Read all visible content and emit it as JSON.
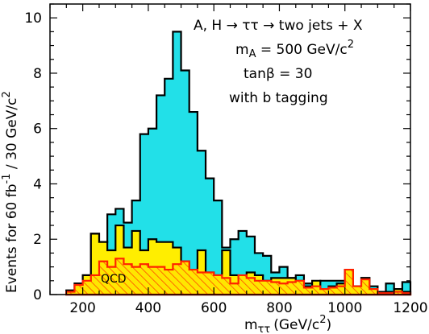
{
  "chart_data": {
    "type": "area",
    "title": "",
    "xlabel": "m",
    "xlabel_sub": "ττ",
    "xlabel_unit": "(GeV/c",
    "xlabel_unit_sup": "2",
    "xlabel_unit_close": ")",
    "ylabel": "Events for 60 fb",
    "ylabel_sup1": "-1",
    "ylabel_mid": " / 30 GeV/c",
    "ylabel_sup2": "2",
    "xlim": [
      100,
      1200
    ],
    "ylim": [
      0,
      10.5
    ],
    "xticks": [
      200,
      400,
      600,
      800,
      1000,
      1200
    ],
    "yticks": [
      0,
      2,
      4,
      6,
      8,
      10
    ],
    "grid": false,
    "bin_edges": [
      150,
      175,
      200,
      225,
      250,
      275,
      300,
      325,
      350,
      375,
      400,
      425,
      450,
      475,
      500,
      525,
      550,
      575,
      600,
      625,
      650,
      675,
      700,
      725,
      750,
      775,
      800,
      825,
      850,
      875,
      900,
      925,
      950,
      975,
      1000,
      1025,
      1050,
      1075,
      1100,
      1125,
      1150,
      1175,
      1200
    ],
    "series": [
      {
        "name": "",
        "role": "total",
        "fill": "#22e0e8",
        "stroke": "#000000",
        "values": [
          0.15,
          0.4,
          0.7,
          2.2,
          1.9,
          2.9,
          3.1,
          2.6,
          3.4,
          5.8,
          6.0,
          7.2,
          7.8,
          9.5,
          8.1,
          6.6,
          5.2,
          4.2,
          3.4,
          1.7,
          2.0,
          2.3,
          2.1,
          1.5,
          1.4,
          0.8,
          1.0,
          0.6,
          0.7,
          0.4,
          0.45,
          0.5,
          0.5,
          0.5,
          0.9,
          0.3,
          0.6,
          0.3,
          0.1,
          0.4,
          0.2,
          0.45
        ]
      },
      {
        "name": "",
        "role": "background",
        "fill": "#ffee00",
        "stroke": "#000000",
        "values": [
          0.15,
          0.4,
          0.7,
          2.2,
          1.9,
          1.6,
          2.5,
          1.7,
          2.3,
          1.6,
          2.0,
          1.9,
          1.9,
          1.7,
          1.2,
          0.9,
          1.6,
          0.8,
          0.7,
          1.6,
          0.7,
          0.6,
          0.8,
          0.7,
          0.5,
          0.6,
          0.6,
          0.6,
          0.5,
          0.3,
          0.5,
          0.2,
          0.3,
          0.4,
          0.9,
          0.3,
          0.6,
          0.2,
          0.1,
          0.1,
          0.2,
          0.1
        ]
      },
      {
        "name": "QCD",
        "role": "qcd",
        "fill": "#ff9922",
        "stroke": "#ff2200",
        "values": [
          0.1,
          0.35,
          0.5,
          0.7,
          1.2,
          1.0,
          1.3,
          1.1,
          1.0,
          1.1,
          1.0,
          1.0,
          0.9,
          1.1,
          1.2,
          0.9,
          0.8,
          0.8,
          0.7,
          0.6,
          0.4,
          0.7,
          0.6,
          0.5,
          0.5,
          0.45,
          0.4,
          0.45,
          0.5,
          0.25,
          0.3,
          0.2,
          0.25,
          0.3,
          0.9,
          0.3,
          0.55,
          0.2,
          0.05,
          0.05,
          0.1,
          0.05
        ]
      }
    ],
    "annotations": [
      {
        "id": "process",
        "text": "A, H → ττ → two jets + X"
      },
      {
        "id": "mass",
        "text": "m",
        "sub": "A",
        "rest": " = 500 GeV/c",
        "sup": "2"
      },
      {
        "id": "tanbeta",
        "text": "tanβ = 30"
      },
      {
        "id": "btag",
        "text": "with b tagging"
      },
      {
        "id": "qcd-label",
        "text": "QCD"
      }
    ]
  }
}
